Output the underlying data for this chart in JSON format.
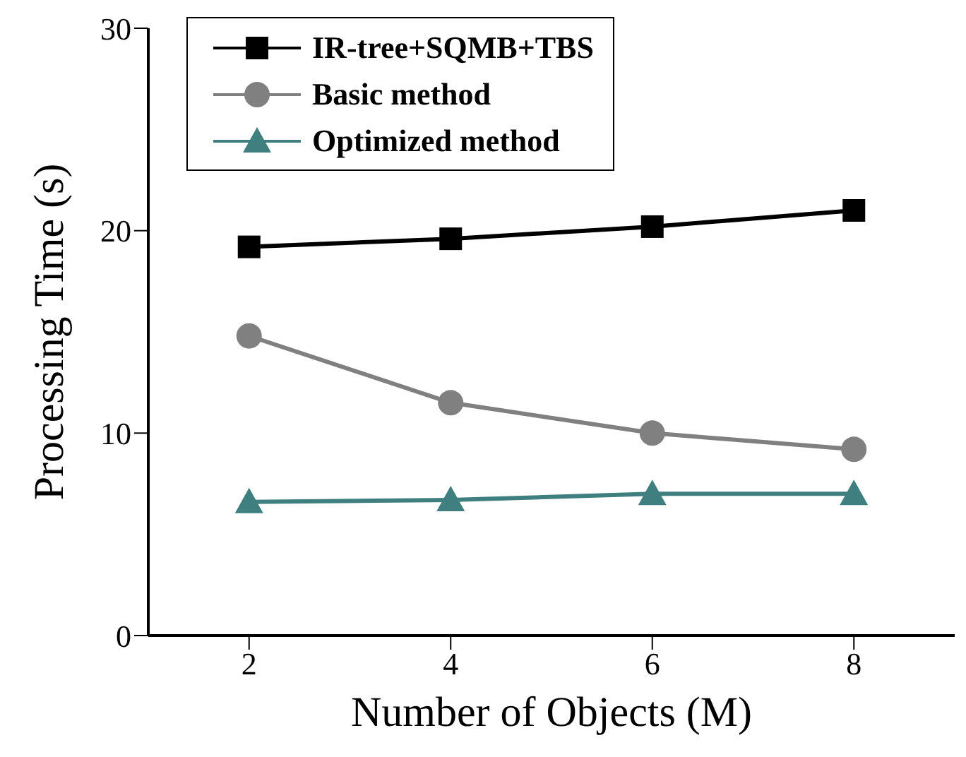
{
  "chart_data": {
    "type": "line",
    "xlabel": "Number of  Objects (M)",
    "ylabel": "Processing Time (s)",
    "x": [
      2,
      4,
      6,
      8
    ],
    "xlim": [
      1,
      9
    ],
    "xticks": [
      2,
      4,
      6,
      8
    ],
    "ylim": [
      0,
      30
    ],
    "yticks": [
      0,
      10,
      20,
      30
    ],
    "grid": false,
    "legend": "top left",
    "line_style": "solid",
    "series": [
      {
        "name": "IR-tree+SQMB+TBS",
        "color": "#000000",
        "marker": "square",
        "values": [
          19.2,
          19.6,
          20.2,
          21.0
        ]
      },
      {
        "name": "Basic method",
        "color": "#808080",
        "marker": "circle",
        "values": [
          14.8,
          11.5,
          10.0,
          9.2
        ]
      },
      {
        "name": "Optimized method",
        "color": "#3f7f7f",
        "marker": "triangle",
        "values": [
          6.6,
          6.7,
          7.0,
          7.0
        ]
      }
    ]
  }
}
